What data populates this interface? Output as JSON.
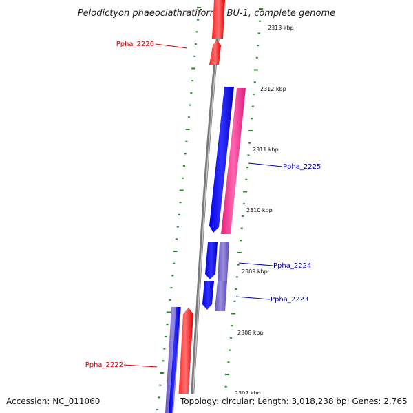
{
  "title": "Pelodictyon phaeoclathratiforme BU-1, complete genome",
  "footer": {
    "accession": "Accession: NC_011060",
    "summary": "Topology: circular; Length: 3,018,238 bp; Genes: 2,765"
  },
  "ticks": [
    "2313 kbp",
    "2312 kbp",
    "2311 kbp",
    "2310 kbp",
    "2309 kbp",
    "2308 kbp",
    "2307 kbp"
  ],
  "genes": [
    {
      "label": "Ppha_2226",
      "strand": "forward",
      "color": "#cc0000"
    },
    {
      "label": "Ppha_2225",
      "strand": "reverse",
      "color": "#000099"
    },
    {
      "label": "Ppha_2224",
      "strand": "reverse",
      "color": "#000099"
    },
    {
      "label": "Ppha_2223",
      "strand": "reverse",
      "color": "#000099"
    },
    {
      "label": "Ppha_2222",
      "strand": "forward",
      "color": "#cc0000"
    }
  ],
  "colors": {
    "forward_cds": "#ff0000",
    "reverse_cds": "#0000ff",
    "pink_feature": "#ff3399",
    "purple_feature": "#7766cc",
    "backbone": "#888888",
    "ticks_green": "#228b22"
  }
}
